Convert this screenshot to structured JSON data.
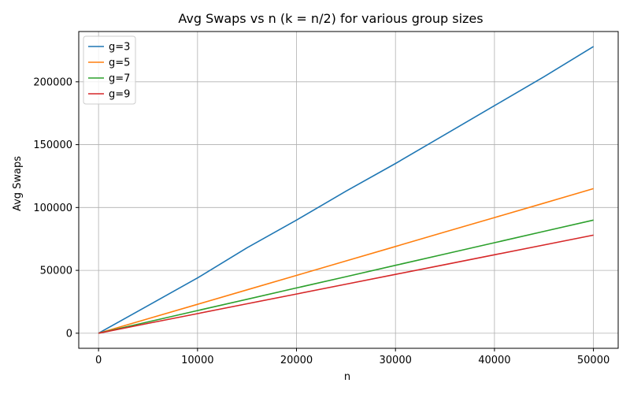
{
  "chart_data": {
    "type": "line",
    "title": "Avg Swaps vs n (k = n/2) for various group sizes",
    "xlabel": "n",
    "ylabel": "Avg Swaps",
    "xlim": [
      -2000,
      52500
    ],
    "ylim": [
      -12000,
      240000
    ],
    "xticks": [
      0,
      10000,
      20000,
      30000,
      40000,
      50000
    ],
    "yticks": [
      0,
      50000,
      100000,
      150000,
      200000
    ],
    "grid": true,
    "legend_position": "top-left",
    "series": [
      {
        "name": "g=3",
        "color": "#1f77b4",
        "x": [
          0,
          5000,
          10000,
          15000,
          20000,
          25000,
          30000,
          35000,
          40000,
          45000,
          50000
        ],
        "y": [
          0,
          22000,
          44000,
          68000,
          90000,
          113000,
          135000,
          158000,
          181000,
          204000,
          228000
        ]
      },
      {
        "name": "g=5",
        "color": "#ff7f0e",
        "x": [
          0,
          5000,
          10000,
          15000,
          20000,
          25000,
          30000,
          35000,
          40000,
          45000,
          50000
        ],
        "y": [
          0,
          11500,
          23000,
          34500,
          46000,
          57500,
          69000,
          80500,
          92000,
          103500,
          115000
        ]
      },
      {
        "name": "g=7",
        "color": "#2ca02c",
        "x": [
          0,
          5000,
          10000,
          15000,
          20000,
          25000,
          30000,
          35000,
          40000,
          45000,
          50000
        ],
        "y": [
          0,
          9000,
          18000,
          27000,
          36000,
          45000,
          54000,
          63000,
          72000,
          81000,
          90000
        ]
      },
      {
        "name": "g=9",
        "color": "#d62728",
        "x": [
          0,
          5000,
          10000,
          15000,
          20000,
          25000,
          30000,
          35000,
          40000,
          45000,
          50000
        ],
        "y": [
          0,
          7800,
          15600,
          23400,
          31200,
          39000,
          46800,
          54600,
          62400,
          70200,
          78000
        ]
      }
    ]
  }
}
